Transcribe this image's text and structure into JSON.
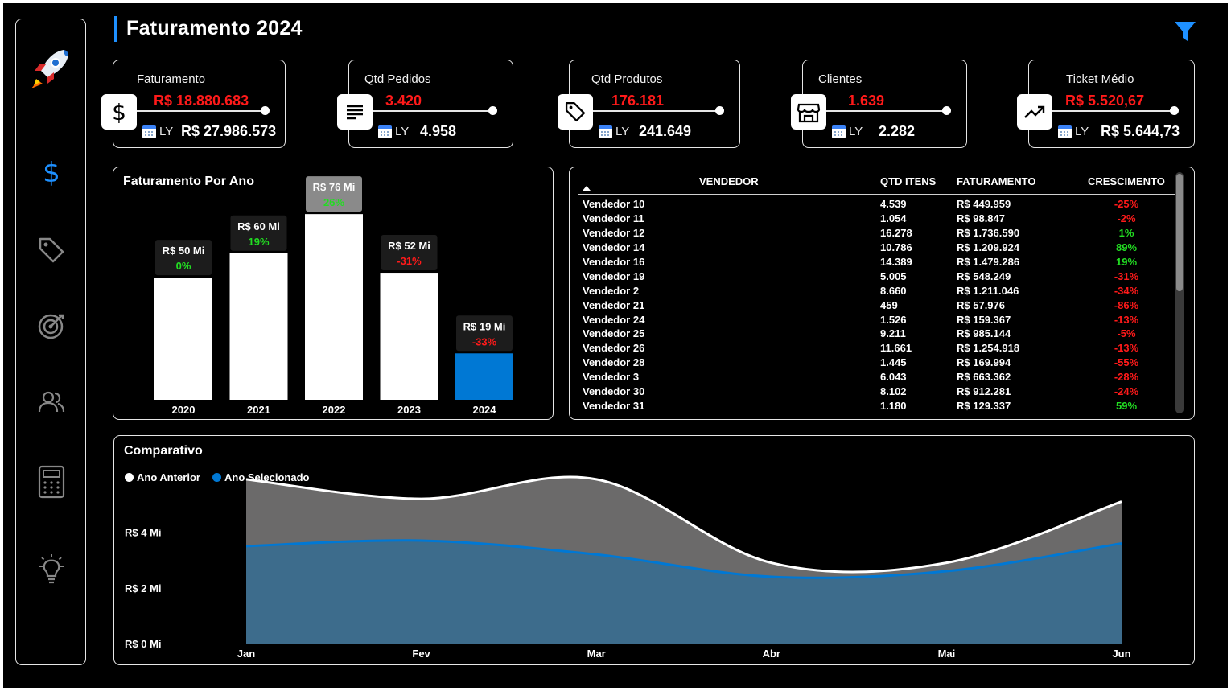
{
  "header": {
    "title": "Faturamento 2024"
  },
  "sidebar": {
    "items": [
      {
        "name": "rocket-logo-icon"
      },
      {
        "name": "dollar-icon"
      },
      {
        "name": "tag-icon"
      },
      {
        "name": "target-icon"
      },
      {
        "name": "users-icon"
      },
      {
        "name": "calculator-icon"
      },
      {
        "name": "lightbulb-icon"
      }
    ]
  },
  "kpis": [
    {
      "label": "Faturamento",
      "value": "R$ 18.880.683",
      "ly_label": "LY",
      "ly_value": "R$ 27.986.573",
      "icon": "dollar-icon"
    },
    {
      "label": "Qtd Pedidos",
      "value": "3.420",
      "ly_label": "LY",
      "ly_value": "4.958",
      "icon": "list-icon"
    },
    {
      "label": "Qtd Produtos",
      "value": "176.181",
      "ly_label": "LY",
      "ly_value": "241.649",
      "icon": "tag-icon"
    },
    {
      "label": "Clientes",
      "value": "1.639",
      "ly_label": "LY",
      "ly_value": "2.282",
      "icon": "store-icon"
    },
    {
      "label": "Ticket Médio",
      "value": "R$ 5.520,67",
      "ly_label": "LY",
      "ly_value": "R$ 5.644,73",
      "icon": "trend-up-icon"
    }
  ],
  "colors": {
    "accent": "#0078d4",
    "negative": "#ff1a1a",
    "positive": "#22dd22",
    "bar": "#ffffff",
    "highlight_bar": "#0078d4",
    "area_prev": "#6b6a6a",
    "area_sel": "#3d6c8c"
  },
  "chart_data": [
    {
      "type": "bar",
      "title": "Faturamento Por Ano",
      "categories": [
        "2020",
        "2021",
        "2022",
        "2023",
        "2024"
      ],
      "values": [
        50,
        60,
        76,
        52,
        19
      ],
      "value_labels": [
        "R$ 50 Mi",
        "R$ 60 Mi",
        "R$ 76 Mi",
        "R$ 52 Mi",
        "R$ 19 Mi"
      ],
      "growth_labels": [
        "0%",
        "19%",
        "26%",
        "-31%",
        "-33%"
      ],
      "highlight": "2024",
      "ylim": [
        0,
        80
      ]
    },
    {
      "type": "area",
      "title": "Comparativo",
      "categories": [
        "Jan",
        "Fev",
        "Mar",
        "Abr",
        "Mai",
        "Jun"
      ],
      "series": [
        {
          "name": "Ano Anterior",
          "values": [
            5.9,
            5.2,
            5.9,
            2.9,
            2.9,
            5.1
          ]
        },
        {
          "name": "Ano Selecionado",
          "values": [
            3.5,
            3.7,
            3.2,
            2.4,
            2.6,
            3.6
          ]
        }
      ],
      "y_ticks": [
        "R$ 0 Mi",
        "R$ 2 Mi",
        "R$ 4 Mi"
      ],
      "ylim": [
        0,
        6.3
      ],
      "legend_position": "top-left"
    }
  ],
  "table": {
    "columns": [
      "VENDEDOR",
      "QTD ITENS",
      "FATURAMENTO",
      "CRESCIMENTO"
    ],
    "rows": [
      {
        "vendedor": "Vendedor 10",
        "qtd": "4.539",
        "fat": "R$ 449.959",
        "cres": "-25%"
      },
      {
        "vendedor": "Vendedor 11",
        "qtd": "1.054",
        "fat": "R$ 98.847",
        "cres": "-2%"
      },
      {
        "vendedor": "Vendedor 12",
        "qtd": "16.278",
        "fat": "R$ 1.736.590",
        "cres": "1%"
      },
      {
        "vendedor": "Vendedor 14",
        "qtd": "10.786",
        "fat": "R$ 1.209.924",
        "cres": "89%"
      },
      {
        "vendedor": "Vendedor 16",
        "qtd": "14.389",
        "fat": "R$ 1.479.286",
        "cres": "19%"
      },
      {
        "vendedor": "Vendedor 19",
        "qtd": "5.005",
        "fat": "R$ 548.249",
        "cres": "-31%"
      },
      {
        "vendedor": "Vendedor 2",
        "qtd": "8.660",
        "fat": "R$ 1.211.046",
        "cres": "-34%"
      },
      {
        "vendedor": "Vendedor 21",
        "qtd": "459",
        "fat": "R$ 57.976",
        "cres": "-86%"
      },
      {
        "vendedor": "Vendedor 24",
        "qtd": "1.526",
        "fat": "R$ 159.367",
        "cres": "-13%"
      },
      {
        "vendedor": "Vendedor 25",
        "qtd": "9.211",
        "fat": "R$ 985.144",
        "cres": "-5%"
      },
      {
        "vendedor": "Vendedor 26",
        "qtd": "11.661",
        "fat": "R$ 1.254.918",
        "cres": "-13%"
      },
      {
        "vendedor": "Vendedor 28",
        "qtd": "1.445",
        "fat": "R$ 169.994",
        "cres": "-55%"
      },
      {
        "vendedor": "Vendedor 3",
        "qtd": "6.043",
        "fat": "R$ 663.362",
        "cres": "-28%"
      },
      {
        "vendedor": "Vendedor 30",
        "qtd": "8.102",
        "fat": "R$ 912.281",
        "cres": "-24%"
      },
      {
        "vendedor": "Vendedor 31",
        "qtd": "1.180",
        "fat": "R$ 129.337",
        "cres": "59%"
      }
    ]
  }
}
